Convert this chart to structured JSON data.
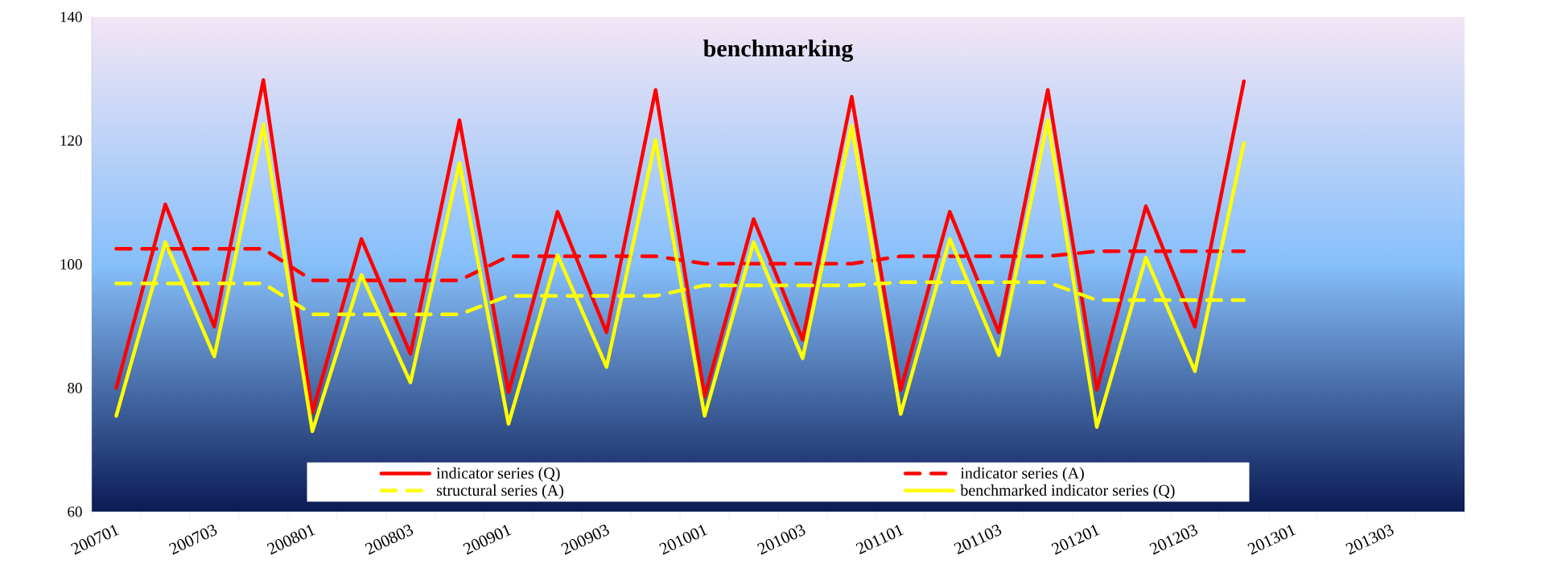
{
  "chart_data": {
    "type": "line",
    "title": "benchmarking",
    "categories": [
      "200701",
      null,
      "200703",
      null,
      "200801",
      null,
      "200803",
      null,
      "200901",
      null,
      "200903",
      null,
      "201001",
      null,
      "201003",
      null,
      "201101",
      null,
      "201103",
      null,
      "201201",
      null,
      "201203",
      null,
      "201301",
      null,
      "201303",
      null
    ],
    "ylim": [
      60,
      140
    ],
    "yticks": [
      60,
      80,
      100,
      120,
      140
    ],
    "grid": false,
    "legend": "bottom",
    "series": [
      {
        "name": "indicator series (Q)",
        "color": "#ff0000",
        "line_style": "solid",
        "values": [
          80,
          109.7,
          89.9,
          129.8,
          76.0,
          104.1,
          85.5,
          123.3,
          79.3,
          108.5,
          89.0,
          128.2,
          78.6,
          107.3,
          87.8,
          127.1,
          79.7,
          108.5,
          89.0,
          128.2,
          79.7,
          109.4,
          89.9,
          129.6,
          null,
          null,
          null,
          null
        ]
      },
      {
        "name": "indicator series (A)",
        "color": "#ff0000",
        "line_style": "dashed",
        "values": [
          102.5,
          102.5,
          102.5,
          102.5,
          97.4,
          97.4,
          97.4,
          97.4,
          101.3,
          101.3,
          101.3,
          101.3,
          100.1,
          100.1,
          100.1,
          100.1,
          101.3,
          101.3,
          101.3,
          101.3,
          102.1,
          102.1,
          102.1,
          102.1,
          null,
          null,
          null,
          null
        ]
      },
      {
        "name": "structural series (A)",
        "color": "#ffff00",
        "line_style": "dashed",
        "values": [
          96.9,
          96.9,
          96.9,
          96.9,
          91.9,
          91.9,
          91.9,
          91.9,
          94.9,
          94.9,
          94.9,
          94.9,
          96.6,
          96.6,
          96.6,
          96.6,
          97.1,
          97.1,
          97.1,
          97.1,
          94.2,
          94.2,
          94.2,
          94.2,
          null,
          null,
          null,
          null
        ]
      },
      {
        "name": "benchmarked indicator series (Q)",
        "color": "#ffff00",
        "line_style": "solid",
        "values": [
          75.5,
          103.6,
          85.1,
          122.6,
          73,
          98.3,
          80.9,
          116.4,
          74.2,
          101.5,
          83.4,
          120.1,
          75.5,
          103.6,
          84.8,
          122.4,
          75.8,
          104.1,
          85.3,
          123.3,
          73.7,
          101.1,
          82.7,
          119.6,
          null,
          null,
          null,
          null
        ]
      }
    ]
  }
}
